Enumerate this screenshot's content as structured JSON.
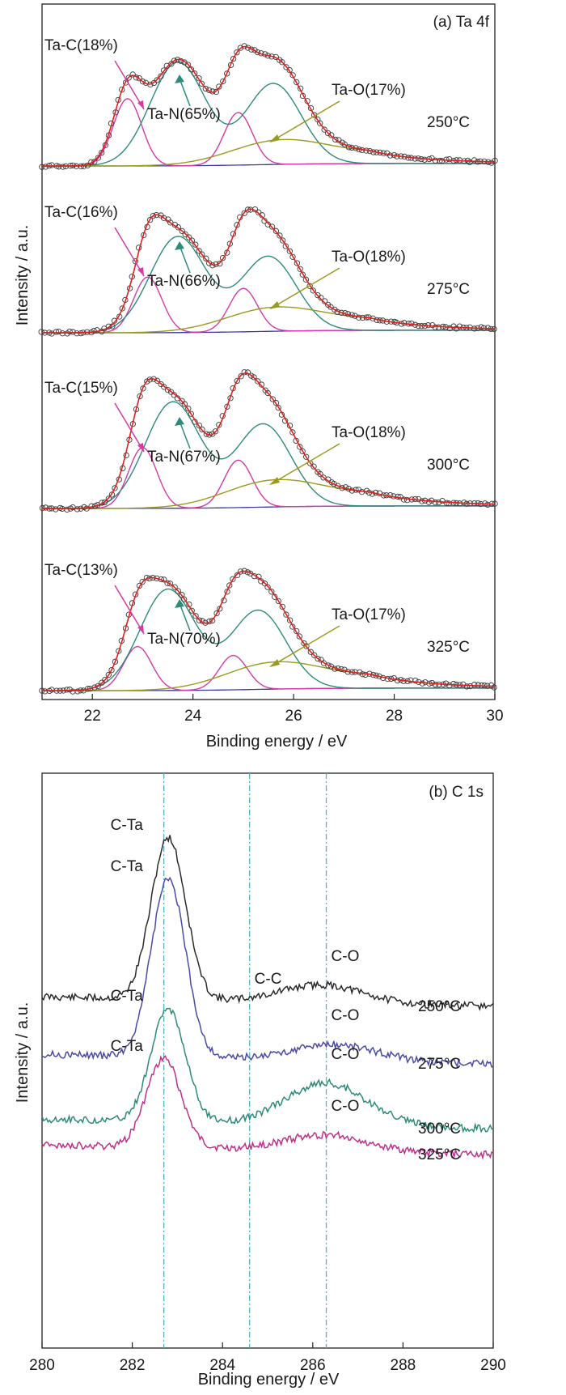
{
  "chart_data": [
    {
      "type": "line",
      "panel_label": "(a) Ta 4f",
      "xlabel": "Binding energy / eV",
      "ylabel": "Intensity / a.u.",
      "xlim": [
        21,
        30
      ],
      "xticks": [
        22,
        24,
        26,
        28,
        30
      ],
      "colors": {
        "data_markers": "#3a3a3a",
        "fit_envelope": "#e02020",
        "ta_c": "#d63aa6",
        "ta_n": "#2e8b7a",
        "ta_o": "#9a9a1e",
        "background": "#3a3aa0"
      },
      "spectra": [
        {
          "label": "250°C",
          "components": [
            {
              "name": "Ta-C",
              "percent": 18,
              "label": "Ta-C(18%)",
              "centers_eV": [
                22.7,
                24.9
              ],
              "rel_height": 0.52
            },
            {
              "name": "Ta-N",
              "percent": 65,
              "label": "Ta-N(65%)",
              "centers_eV": [
                23.7,
                25.6
              ],
              "rel_height": 0.8
            },
            {
              "name": "Ta-O",
              "percent": 17,
              "label": "Ta-O(17%)",
              "centers_eV": [
                25.6,
                27.3
              ],
              "rel_height": 0.16
            }
          ]
        },
        {
          "label": "275°C",
          "components": [
            {
              "name": "Ta-C",
              "percent": 16,
              "label": "Ta-C(16%)",
              "centers_eV": [
                23.1,
                25.0
              ],
              "rel_height": 0.43
            },
            {
              "name": "Ta-N",
              "percent": 66,
              "label": "Ta-N(66%)",
              "centers_eV": [
                23.7,
                25.5
              ],
              "rel_height": 0.74
            },
            {
              "name": "Ta-O",
              "percent": 18,
              "label": "Ta-O(18%)",
              "centers_eV": [
                25.5,
                27.2
              ],
              "rel_height": 0.16
            }
          ]
        },
        {
          "label": "300°C",
          "components": [
            {
              "name": "Ta-C",
              "percent": 15,
              "label": "Ta-C(15%)",
              "centers_eV": [
                23.0,
                24.9
              ],
              "rel_height": 0.47
            },
            {
              "name": "Ta-N",
              "percent": 67,
              "label": "Ta-N(67%)",
              "centers_eV": [
                23.6,
                25.4
              ],
              "rel_height": 0.82
            },
            {
              "name": "Ta-O",
              "percent": 18,
              "label": "Ta-O(18%)",
              "centers_eV": [
                25.5,
                27.3
              ],
              "rel_height": 0.18
            }
          ]
        },
        {
          "label": "325°C",
          "components": [
            {
              "name": "Ta-C",
              "percent": 13,
              "label": "Ta-C(13%)",
              "centers_eV": [
                22.9,
                24.8
              ],
              "rel_height": 0.34
            },
            {
              "name": "Ta-N",
              "percent": 70,
              "label": "Ta-N(70%)",
              "centers_eV": [
                23.5,
                25.3
              ],
              "rel_height": 0.78
            },
            {
              "name": "Ta-O",
              "percent": 17,
              "label": "Ta-O(17%)",
              "centers_eV": [
                25.5,
                27.2
              ],
              "rel_height": 0.18
            }
          ]
        }
      ]
    },
    {
      "type": "line",
      "panel_label": "(b) C 1s",
      "xlabel": "Binding energy / eV",
      "ylabel": "Intensity / a.u.",
      "xlim": [
        280,
        290
      ],
      "xticks": [
        280,
        282,
        284,
        286,
        288,
        290
      ],
      "reference_lines_eV": [
        282.7,
        284.6,
        286.3
      ],
      "peak_labels": {
        "c_ta": "C-Ta",
        "c_c": "C-C",
        "c_o": "C-O"
      },
      "series": [
        {
          "name": "250°C",
          "color": "#2a2a2a",
          "peaks": [
            {
              "center_eV": 282.8,
              "rel_height": 1.0
            },
            {
              "center_eV": 286.2,
              "rel_height": 0.11
            }
          ]
        },
        {
          "name": "275°C",
          "color": "#4a4aa8",
          "peaks": [
            {
              "center_eV": 282.8,
              "rel_height": 1.1
            },
            {
              "center_eV": 286.5,
              "rel_height": 0.1
            }
          ]
        },
        {
          "name": "300°C",
          "color": "#2e8b7a",
          "peaks": [
            {
              "center_eV": 282.8,
              "rel_height": 0.7
            },
            {
              "center_eV": 286.3,
              "rel_height": 0.26
            }
          ]
        },
        {
          "name": "325°C",
          "color": "#c0308a",
          "peaks": [
            {
              "center_eV": 282.7,
              "rel_height": 0.55
            },
            {
              "center_eV": 286.3,
              "rel_height": 0.1
            }
          ]
        }
      ]
    }
  ]
}
